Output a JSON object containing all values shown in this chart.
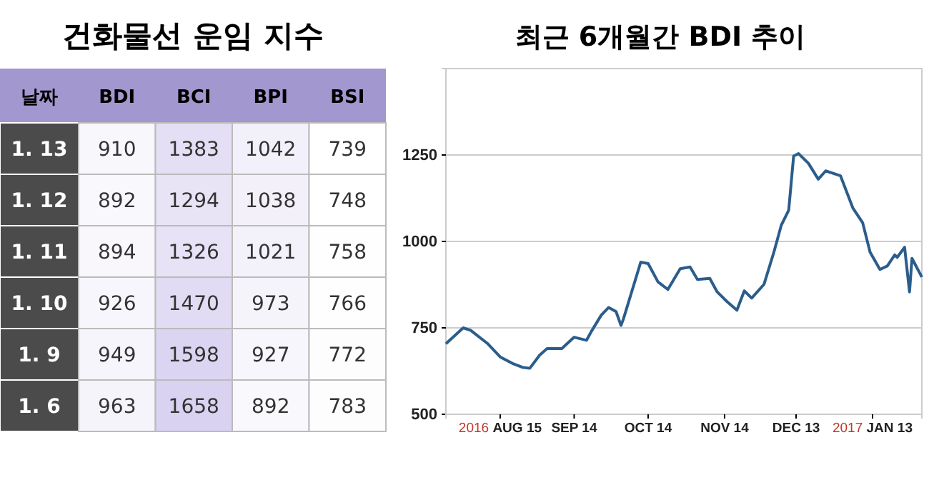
{
  "chart_data": [
    {
      "type": "heatmap",
      "title": "건화물선 운임 지수",
      "ylabel": "날짜",
      "categories": [
        "BDI",
        "BCI",
        "BPI",
        "BSI"
      ],
      "y_categories": [
        "1. 13",
        "1. 12",
        "1. 11",
        "1. 10",
        "1. 9",
        "1. 6"
      ],
      "cells": [
        [
          910,
          1383,
          1042,
          739
        ],
        [
          892,
          1294,
          1038,
          748
        ],
        [
          894,
          1326,
          1021,
          758
        ],
        [
          926,
          1470,
          973,
          766
        ],
        [
          949,
          1598,
          927,
          772
        ],
        [
          963,
          1658,
          892,
          783
        ]
      ],
      "data_labels": true
    },
    {
      "type": "line",
      "title": "최근 6개월간 BDI 추이",
      "grid": "y",
      "xlim": [
        "2016-07-24",
        "2017-02-02"
      ],
      "ylim": [
        500,
        1500
      ],
      "yticks": [
        500,
        750,
        1000,
        1250
      ],
      "xticks": [
        {
          "value": "2016-08-15",
          "label": "2016 AUG 15"
        },
        {
          "value": "2016-09-14",
          "label": "SEP 14"
        },
        {
          "value": "2016-10-14",
          "label": "OCT 14"
        },
        {
          "value": "2016-11-14",
          "label": "NOV 14"
        },
        {
          "value": "2016-12-13",
          "label": "DEC 13"
        },
        {
          "value": "2017-01-13",
          "label": "2017 JAN 13"
        }
      ],
      "series": [
        {
          "color": "#2b5d8c",
          "x": [
            "2016-07-24",
            "2016-07-31",
            "2016-08-03",
            "2016-08-10",
            "2016-08-15",
            "2016-08-20",
            "2016-08-24",
            "2016-08-27",
            "2016-08-31",
            "2016-09-03",
            "2016-09-09",
            "2016-09-14",
            "2016-09-19",
            "2016-09-21",
            "2016-09-25",
            "2016-09-28",
            "2016-10-01",
            "2016-10-03",
            "2016-10-04",
            "2016-10-11",
            "2016-10-14",
            "2016-10-18",
            "2016-10-22",
            "2016-10-27",
            "2016-10-31",
            "2016-11-03",
            "2016-11-08",
            "2016-11-11",
            "2016-11-15",
            "2016-11-19",
            "2016-11-22",
            "2016-11-25",
            "2016-11-30",
            "2016-12-04",
            "2016-12-07",
            "2016-12-10",
            "2016-12-12",
            "2016-12-14",
            "2016-12-18",
            "2016-12-22",
            "2016-12-25",
            "2016-12-28",
            "2016-12-31",
            "2017-01-05",
            "2017-01-09",
            "2017-01-12",
            "2017-01-16",
            "2017-01-19",
            "2017-01-22",
            "2017-01-23",
            "2017-01-26",
            "2017-01-28",
            "2017-01-29",
            "2017-02-02"
          ],
          "values": [
            704,
            750,
            743,
            704,
            666,
            647,
            636,
            633,
            671,
            690,
            690,
            723,
            714,
            740,
            787,
            809,
            797,
            757,
            776,
            940,
            936,
            883,
            861,
            921,
            926,
            890,
            893,
            854,
            826,
            801,
            857,
            836,
            876,
            969,
            1047,
            1090,
            1247,
            1254,
            1226,
            1180,
            1204,
            1197,
            1190,
            1097,
            1054,
            969,
            919,
            929,
            961,
            954,
            983,
            854,
            951,
            897
          ]
        }
      ]
    }
  ]
}
